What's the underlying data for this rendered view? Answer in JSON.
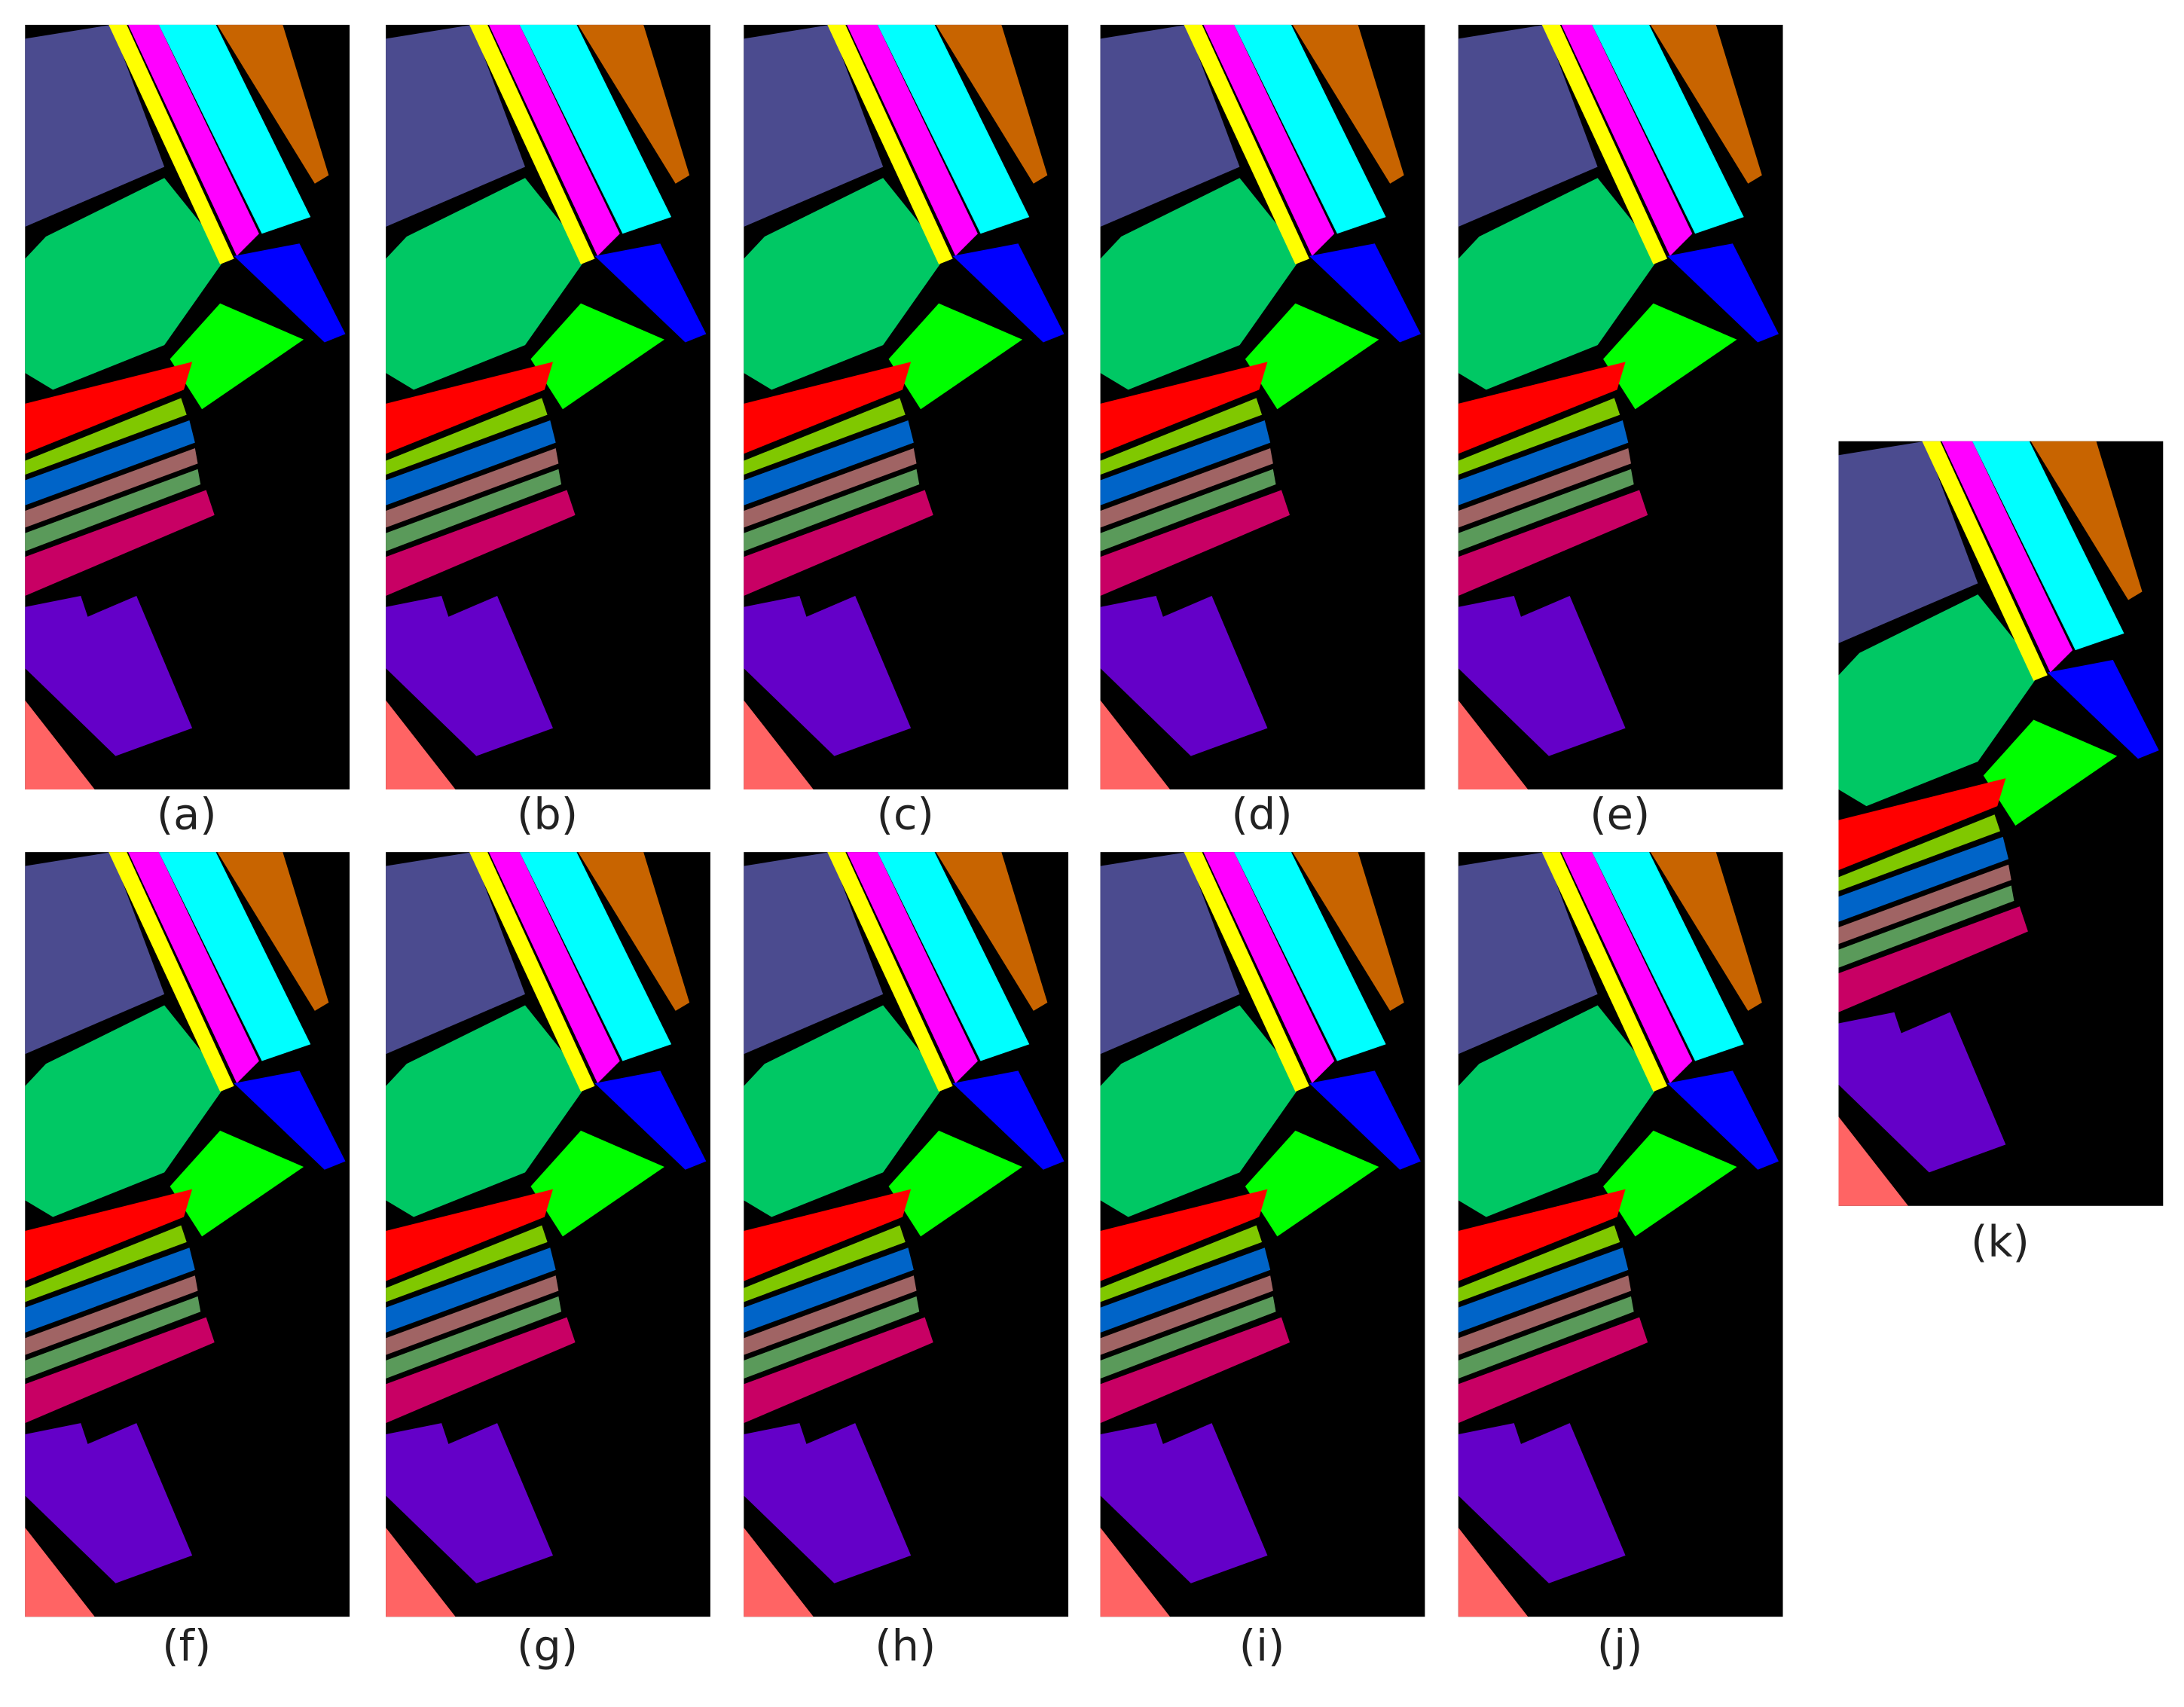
{
  "labels": [
    "(a)",
    "(b)",
    "(c)",
    "(d)",
    "(e)",
    "(f)",
    "(g)",
    "(h)",
    "(i)",
    "(j)",
    "(k)"
  ]
}
